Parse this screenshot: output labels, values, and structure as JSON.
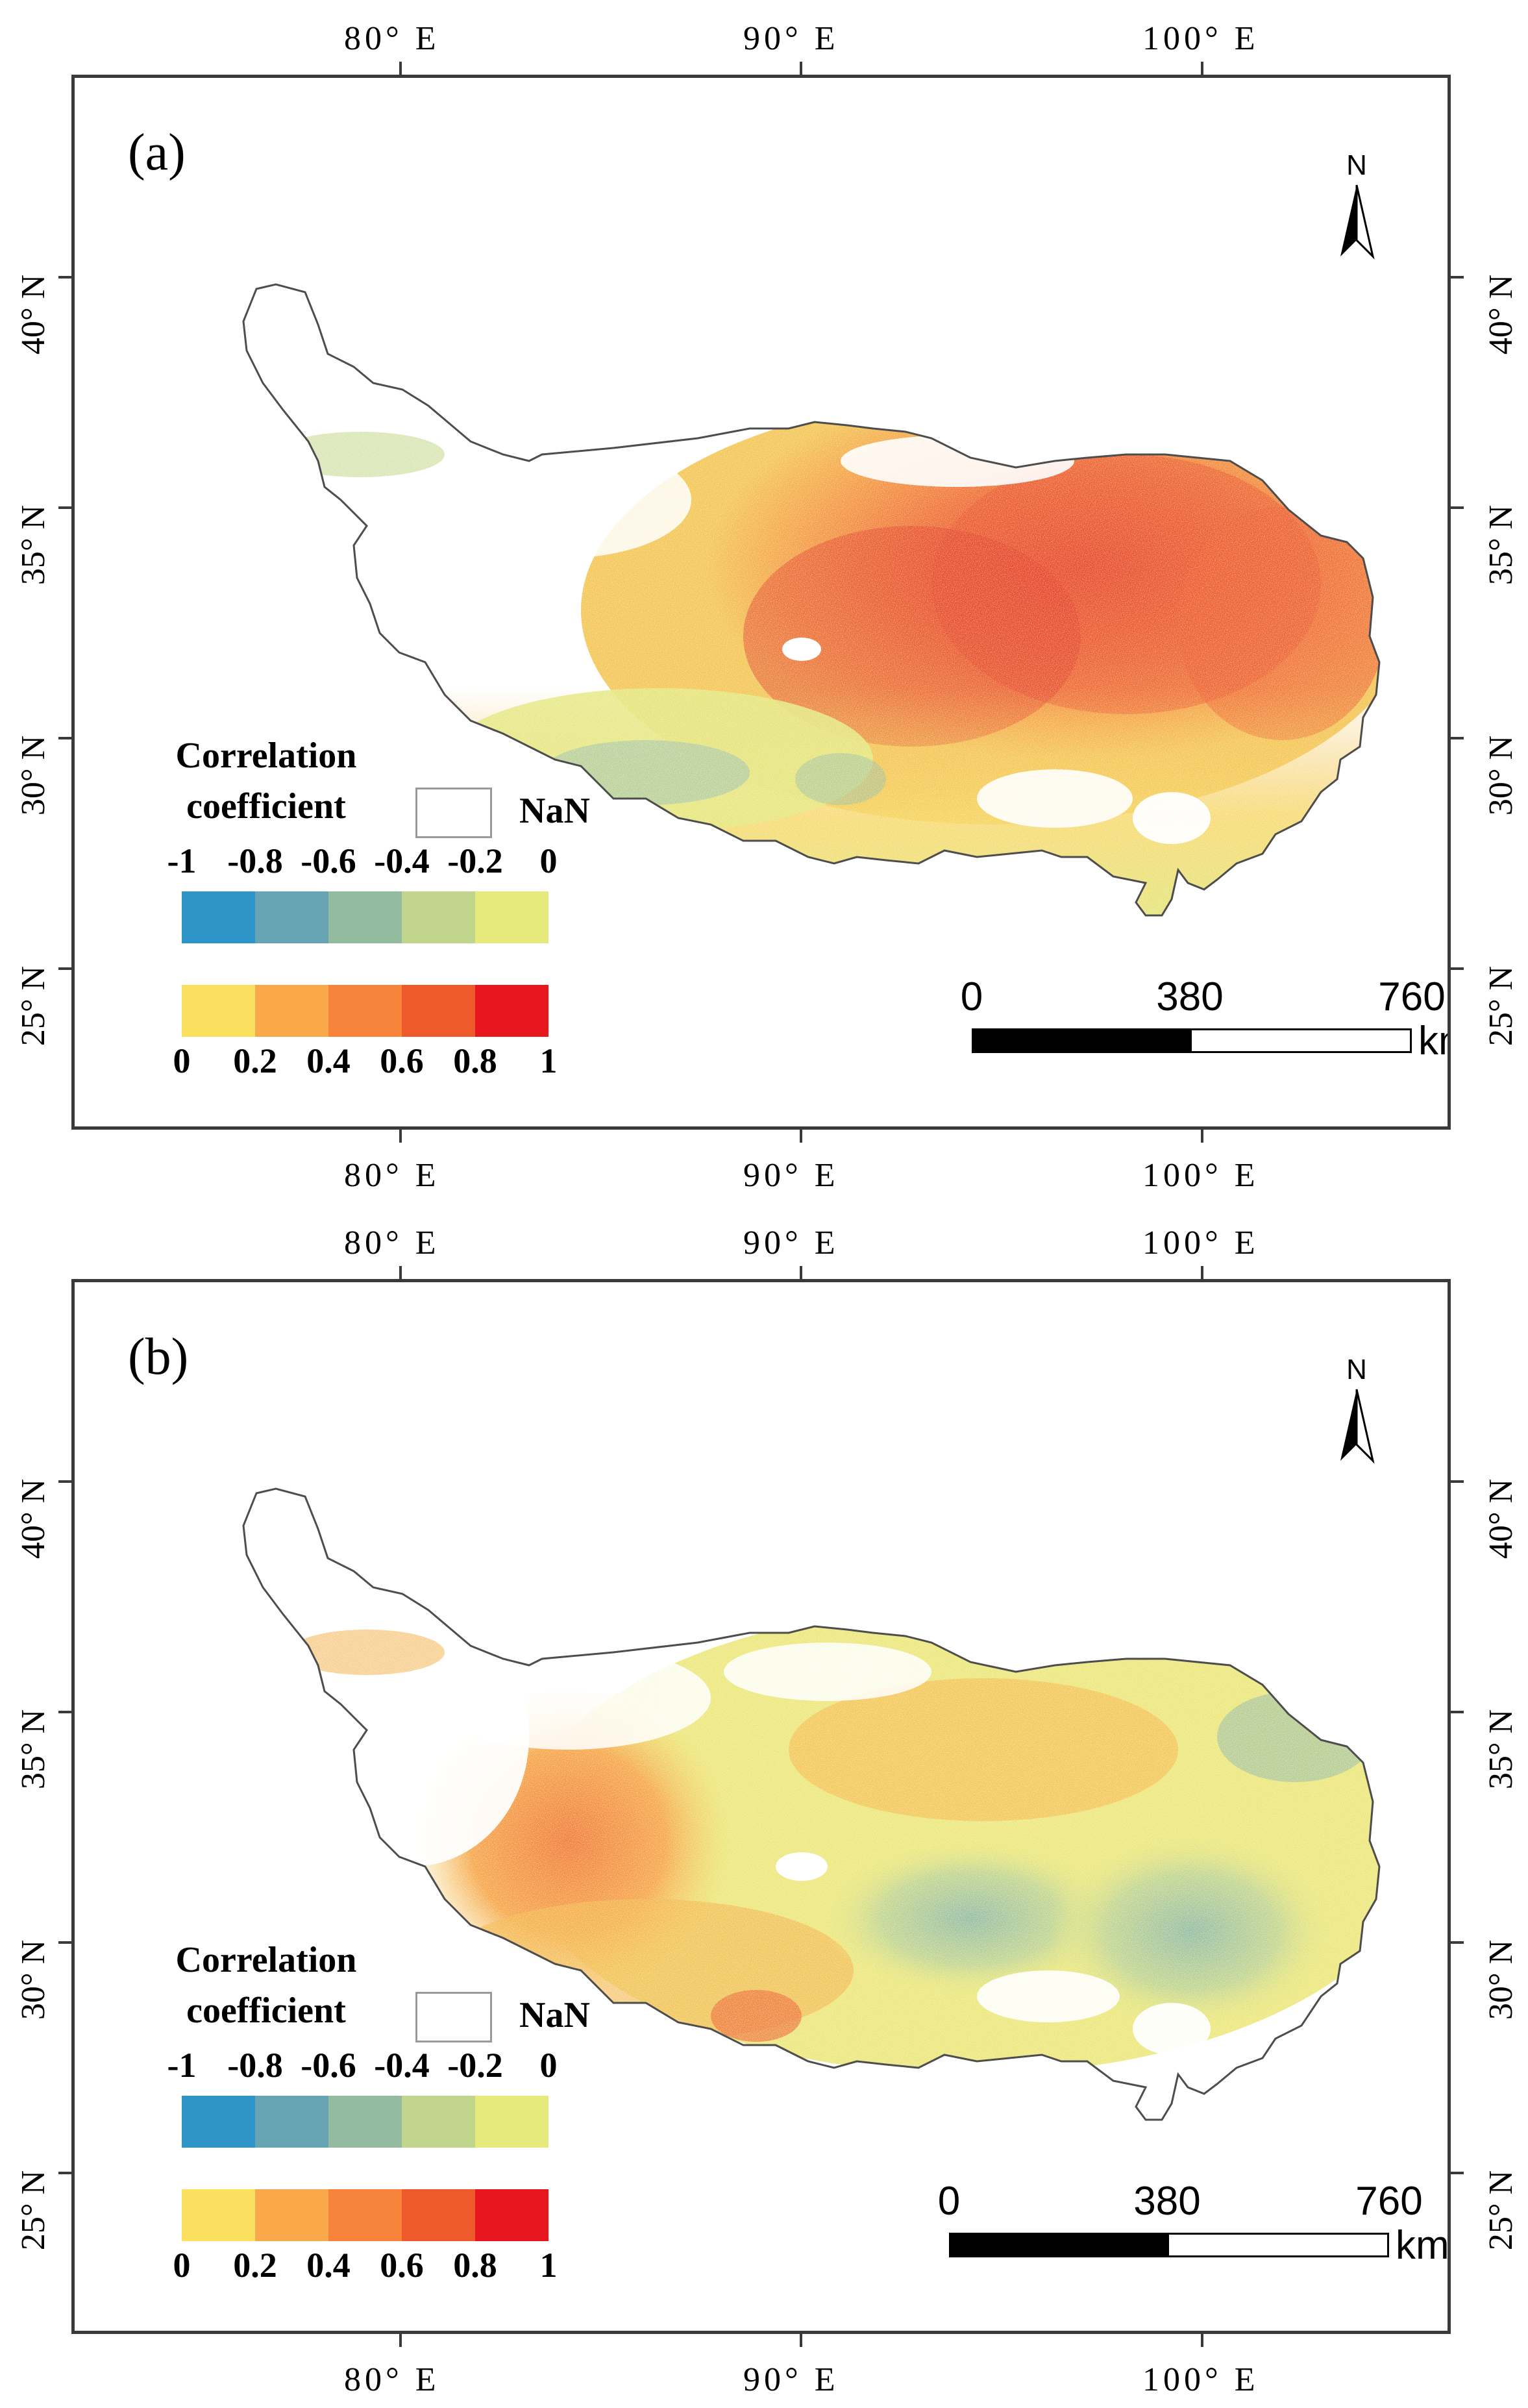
{
  "figures": [
    {
      "id": "a",
      "panel_label": "(a)",
      "scheme": "positive",
      "lon_labels": [
        "80° E",
        "90° E",
        "100° E"
      ],
      "lat_labels": [
        "40° N",
        "35° N",
        "30° N",
        "25° N"
      ]
    },
    {
      "id": "b",
      "panel_label": "(b)",
      "scheme": "mixed",
      "lon_labels": [
        "80° E",
        "90° E",
        "100° E"
      ],
      "lat_labels": [
        "40° N",
        "35° N",
        "30° N",
        "25° N"
      ]
    }
  ],
  "legend": {
    "title_line1": "Correlation",
    "title_line2": "coefficient",
    "nan_label": "NaN",
    "negative_ticks": [
      "-1",
      "-0.8",
      "-0.6",
      "-0.4",
      "-0.2",
      "0"
    ],
    "positive_ticks": [
      "0",
      "0.2",
      "0.4",
      "0.6",
      "0.8",
      "1"
    ],
    "negative_colors": [
      "#2e94c8",
      "#66a3b3",
      "#93bba0",
      "#c2d58d",
      "#e6ea7c"
    ],
    "positive_colors": [
      "#fbe05f",
      "#f9a94a",
      "#f7843a",
      "#ef5a2c",
      "#e8161e"
    ]
  },
  "scalebar": {
    "labels": [
      "0",
      "380",
      "760"
    ],
    "unit": "km"
  },
  "north_arrow": {
    "label": "N"
  }
}
